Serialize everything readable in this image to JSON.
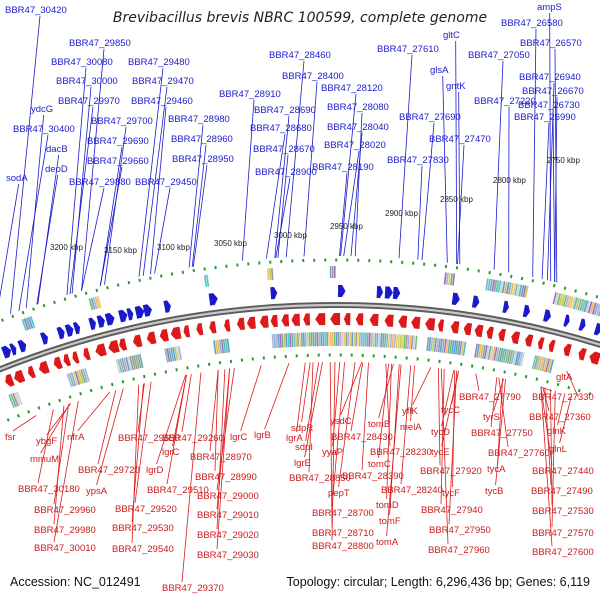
{
  "title": "Brevibacillus brevis NBRC 100599, complete genome",
  "footer": {
    "accession": "Accession: NC_012491",
    "summary": "Topology: circular; Length: 6,296,436 bp; Genes: 6,119"
  },
  "colors": {
    "forward_strand": "#1a1acc",
    "reverse_strand": "#dd1a1a",
    "backbone": "#8a8a8a",
    "tick": "#2a9a2a"
  },
  "kbp_ticks": [
    "3200 kbp",
    "3150 kbp",
    "3100 kbp",
    "3050 kbp",
    "3000 kbp",
    "2950 kbp",
    "2900 kbp",
    "2850 kbp",
    "2800 kbp",
    "2750 kbp"
  ],
  "top_labels": [
    "BBR47_30420",
    "BBR47_29850",
    "BBR47_30080",
    "BBR47_29480",
    "ydcG",
    "BBR47_30000",
    "BBR47_29470",
    "BBR47_29970",
    "BBR47_29460",
    "BBR47_30400",
    "BBR47_29700",
    "BBR47_28980",
    "dacB",
    "BBR47_29690",
    "BBR47_28960",
    "deoD",
    "BBR47_29660",
    "BBR47_28950",
    "sodA",
    "BBR47_29880",
    "BBR47_29450",
    "BBR47_28460",
    "BBR47_28400",
    "BBR47_28910",
    "BBR47_28120",
    "BBR47_28690",
    "BBR47_28080",
    "BBR47_28680",
    "BBR47_28040",
    "BBR47_28670",
    "BBR47_28020",
    "BBR47_28900",
    "BBR47_28190",
    "BBR47_27610",
    "gltC",
    "glsA",
    "BBR47_27050",
    "gntK",
    "BBR47_27220",
    "BBR47_27690",
    "BBR47_27470",
    "BBR47_27830",
    "ampS",
    "BBR47_26580",
    "BBR47_26570",
    "BBR47_26940",
    "BBR47_26670",
    "BBR47_26730",
    "BBR47_26990"
  ],
  "bottom_labels": [
    "fsr",
    "ybgF",
    "mmuM",
    "nfrA",
    "BBR47_29650",
    "BBR47_29260",
    "lgrC",
    "lgrB",
    "lgrA",
    "BBR47_28970",
    "BBR47_29720",
    "lgrD",
    "lgrC",
    "BBR47_30180",
    "ypsA",
    "BBR47_29510",
    "BBR47_28990",
    "BBR47_29960",
    "BBR47_29520",
    "BBR47_29000",
    "BBR47_29980",
    "BBR47_29530",
    "BBR47_29010",
    "BBR47_30010",
    "BBR47_29540",
    "BBR47_29020",
    "BBR47_29030",
    "BBR47_29370",
    "sdpR",
    "sdpI",
    "lgrE",
    "ysdC",
    "yyaP",
    "BBR47_28850",
    "pepT",
    "BBR47_28700",
    "BBR47_28710",
    "BBR47_28800",
    "tomB",
    "BBR47_28430",
    "BBR47_28230",
    "tomC",
    "BBR47_28390",
    "BBR47_28240",
    "tomD",
    "tomF",
    "tomA",
    "yflK",
    "melA",
    "tycC",
    "tycD",
    "tycE",
    "tycF",
    "BBR47_27920",
    "BBR47_27940",
    "BBR47_27950",
    "BBR47_27960",
    "BBR47_27790",
    "tyrS",
    "BBR47_27750",
    "BBR47_27760",
    "tycA",
    "tycB",
    "gltA",
    "BBR47_27330",
    "BBR47_27360",
    "glnK",
    "glnL",
    "BBR47_27440",
    "BBR47_27490",
    "BBR47_27530",
    "BBR47_27570",
    "BBR47_27600"
  ]
}
